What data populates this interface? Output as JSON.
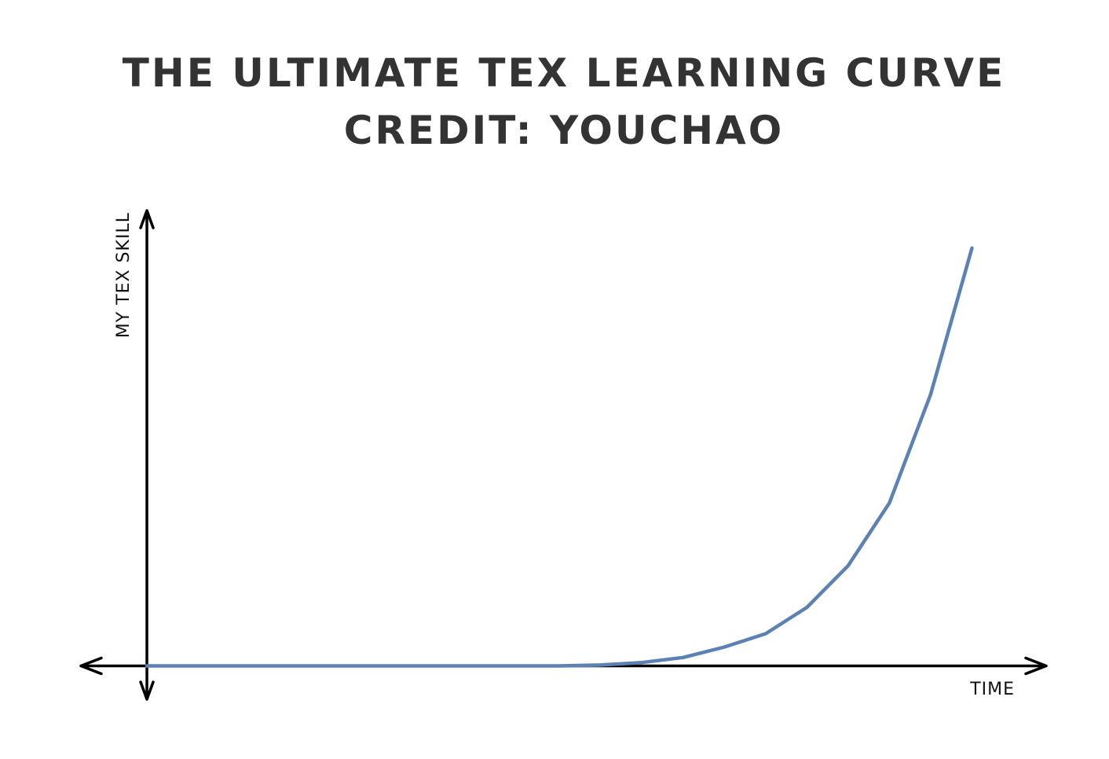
{
  "chart_data": {
    "type": "line",
    "title": "THE ULTIMATE TEX LEARNING CURVE",
    "subtitle": "CREDIT: YOUCHAO",
    "x_label": "TIME",
    "y_label": "MY TEX SKILL",
    "x": [
      0,
      0.5,
      1,
      1.5,
      2,
      2.5,
      3,
      3.5,
      4,
      4.5,
      5,
      5.5,
      6,
      6.5,
      7,
      7.5,
      8,
      8.5,
      9,
      9.5,
      10
    ],
    "series": [
      {
        "color": "#5b81b5",
        "values": [
          0,
          0,
          0,
          0,
          0,
          0,
          0,
          0,
          0,
          0,
          0,
          0.02,
          0.08,
          0.2,
          0.45,
          0.77,
          1.4,
          2.4,
          3.9,
          6.5,
          10
        ]
      }
    ],
    "xlim": [
      -0.8,
      10.9
    ],
    "ylim": [
      -0.8,
      10.9
    ]
  }
}
